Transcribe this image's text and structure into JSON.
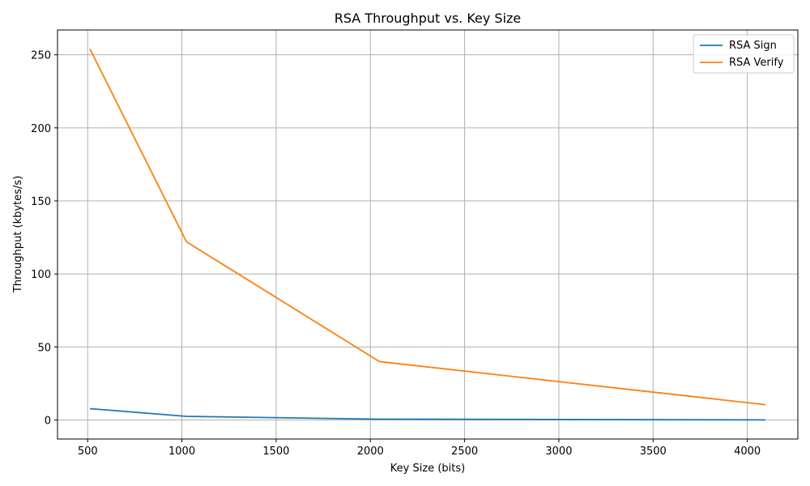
{
  "chart_data": {
    "type": "line",
    "title": "RSA Throughput vs. Key Size",
    "xlabel": "Key Size (bits)",
    "ylabel": "Throughput (kbytes/s)",
    "x": [
      512,
      1024,
      2048,
      4096
    ],
    "series": [
      {
        "name": "RSA Sign",
        "color": "#1f77b4",
        "values": [
          7.8,
          2.5,
          0.6,
          0.1
        ]
      },
      {
        "name": "RSA Verify",
        "color": "#ff7f0e",
        "values": [
          254,
          122,
          40,
          10.5
        ]
      }
    ],
    "xlim": [
      340,
      4268
    ],
    "ylim": [
      -13,
      267
    ],
    "xticks": [
      500,
      1000,
      1500,
      2000,
      2500,
      3000,
      3500,
      4000
    ],
    "yticks": [
      0,
      50,
      100,
      150,
      200,
      250
    ],
    "grid": true,
    "legend_position": "top-right"
  }
}
